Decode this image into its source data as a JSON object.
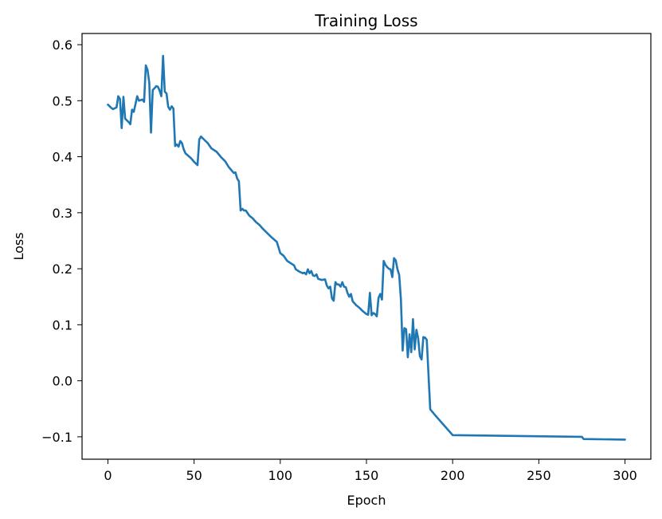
{
  "chart_data": {
    "type": "line",
    "title": "Training Loss",
    "xlabel": "Epoch",
    "ylabel": "Loss",
    "xlim": [
      -15,
      315
    ],
    "ylim": [
      -0.14,
      0.62
    ],
    "xticks": [
      0,
      50,
      100,
      150,
      200,
      250,
      300
    ],
    "xtick_labels": [
      "0",
      "50",
      "100",
      "150",
      "200",
      "250",
      "300"
    ],
    "yticks": [
      -0.1,
      0.0,
      0.1,
      0.2,
      0.3,
      0.4,
      0.5,
      0.6
    ],
    "ytick_labels": [
      "−0.1",
      "0.0",
      "0.1",
      "0.2",
      "0.3",
      "0.4",
      "0.5",
      "0.6"
    ],
    "grid": false,
    "series": [
      {
        "color": "#1f77b4",
        "points": [
          [
            0,
            0.493
          ],
          [
            2,
            0.487
          ],
          [
            3,
            0.485
          ],
          [
            5,
            0.488
          ],
          [
            6,
            0.508
          ],
          [
            7,
            0.503
          ],
          [
            8,
            0.451
          ],
          [
            9,
            0.507
          ],
          [
            10,
            0.468
          ],
          [
            12,
            0.462
          ],
          [
            13,
            0.458
          ],
          [
            14,
            0.484
          ],
          [
            15,
            0.48
          ],
          [
            17,
            0.508
          ],
          [
            18,
            0.5
          ],
          [
            20,
            0.502
          ],
          [
            21,
            0.498
          ],
          [
            22,
            0.563
          ],
          [
            23,
            0.555
          ],
          [
            24,
            0.532
          ],
          [
            25,
            0.443
          ],
          [
            26,
            0.519
          ],
          [
            27,
            0.522
          ],
          [
            28,
            0.526
          ],
          [
            29,
            0.525
          ],
          [
            30,
            0.518
          ],
          [
            31,
            0.508
          ],
          [
            32,
            0.58
          ],
          [
            33,
            0.516
          ],
          [
            34,
            0.513
          ],
          [
            35,
            0.489
          ],
          [
            36,
            0.484
          ],
          [
            37,
            0.49
          ],
          [
            38,
            0.486
          ],
          [
            39,
            0.419
          ],
          [
            40,
            0.422
          ],
          [
            41,
            0.418
          ],
          [
            42,
            0.428
          ],
          [
            43,
            0.424
          ],
          [
            44,
            0.413
          ],
          [
            45,
            0.406
          ],
          [
            48,
            0.398
          ],
          [
            50,
            0.391
          ],
          [
            52,
            0.385
          ],
          [
            53,
            0.431
          ],
          [
            54,
            0.436
          ],
          [
            56,
            0.43
          ],
          [
            58,
            0.424
          ],
          [
            60,
            0.415
          ],
          [
            63,
            0.409
          ],
          [
            66,
            0.398
          ],
          [
            68,
            0.392
          ],
          [
            70,
            0.382
          ],
          [
            73,
            0.371
          ],
          [
            74,
            0.372
          ],
          [
            75,
            0.361
          ],
          [
            76,
            0.356
          ],
          [
            77,
            0.304
          ],
          [
            78,
            0.307
          ],
          [
            79,
            0.304
          ],
          [
            80,
            0.304
          ],
          [
            82,
            0.295
          ],
          [
            84,
            0.29
          ],
          [
            86,
            0.283
          ],
          [
            88,
            0.278
          ],
          [
            90,
            0.271
          ],
          [
            92,
            0.265
          ],
          [
            95,
            0.256
          ],
          [
            98,
            0.248
          ],
          [
            99,
            0.238
          ],
          [
            100,
            0.228
          ],
          [
            102,
            0.223
          ],
          [
            104,
            0.214
          ],
          [
            106,
            0.21
          ],
          [
            108,
            0.206
          ],
          [
            109,
            0.199
          ],
          [
            111,
            0.195
          ],
          [
            113,
            0.192
          ],
          [
            114,
            0.193
          ],
          [
            115,
            0.19
          ],
          [
            116,
            0.199
          ],
          [
            117,
            0.192
          ],
          [
            118,
            0.196
          ],
          [
            119,
            0.188
          ],
          [
            120,
            0.187
          ],
          [
            121,
            0.19
          ],
          [
            122,
            0.182
          ],
          [
            124,
            0.18
          ],
          [
            126,
            0.181
          ],
          [
            127,
            0.17
          ],
          [
            128,
            0.165
          ],
          [
            129,
            0.168
          ],
          [
            130,
            0.147
          ],
          [
            131,
            0.143
          ],
          [
            132,
            0.176
          ],
          [
            133,
            0.172
          ],
          [
            134,
            0.172
          ],
          [
            135,
            0.168
          ],
          [
            136,
            0.176
          ],
          [
            137,
            0.168
          ],
          [
            138,
            0.167
          ],
          [
            139,
            0.157
          ],
          [
            140,
            0.15
          ],
          [
            141,
            0.155
          ],
          [
            142,
            0.142
          ],
          [
            144,
            0.135
          ],
          [
            146,
            0.13
          ],
          [
            148,
            0.124
          ],
          [
            150,
            0.119
          ],
          [
            151,
            0.118
          ],
          [
            152,
            0.157
          ],
          [
            153,
            0.117
          ],
          [
            154,
            0.121
          ],
          [
            155,
            0.119
          ],
          [
            156,
            0.115
          ],
          [
            157,
            0.148
          ],
          [
            158,
            0.155
          ],
          [
            159,
            0.145
          ],
          [
            160,
            0.214
          ],
          [
            161,
            0.207
          ],
          [
            162,
            0.203
          ],
          [
            163,
            0.2
          ],
          [
            164,
            0.199
          ],
          [
            165,
            0.185
          ],
          [
            166,
            0.219
          ],
          [
            167,
            0.215
          ],
          [
            168,
            0.199
          ],
          [
            169,
            0.189
          ],
          [
            170,
            0.145
          ],
          [
            171,
            0.054
          ],
          [
            172,
            0.094
          ],
          [
            173,
            0.092
          ],
          [
            174,
            0.042
          ],
          [
            175,
            0.083
          ],
          [
            176,
            0.051
          ],
          [
            177,
            0.11
          ],
          [
            178,
            0.056
          ],
          [
            179,
            0.091
          ],
          [
            180,
            0.076
          ],
          [
            181,
            0.044
          ],
          [
            182,
            0.038
          ],
          [
            183,
            0.078
          ],
          [
            184,
            0.077
          ],
          [
            185,
            0.073
          ],
          [
            187,
            -0.051
          ],
          [
            190,
            -0.062
          ],
          [
            200,
            -0.097
          ],
          [
            275,
            -0.1
          ],
          [
            276,
            -0.104
          ],
          [
            300,
            -0.105
          ]
        ]
      }
    ]
  }
}
